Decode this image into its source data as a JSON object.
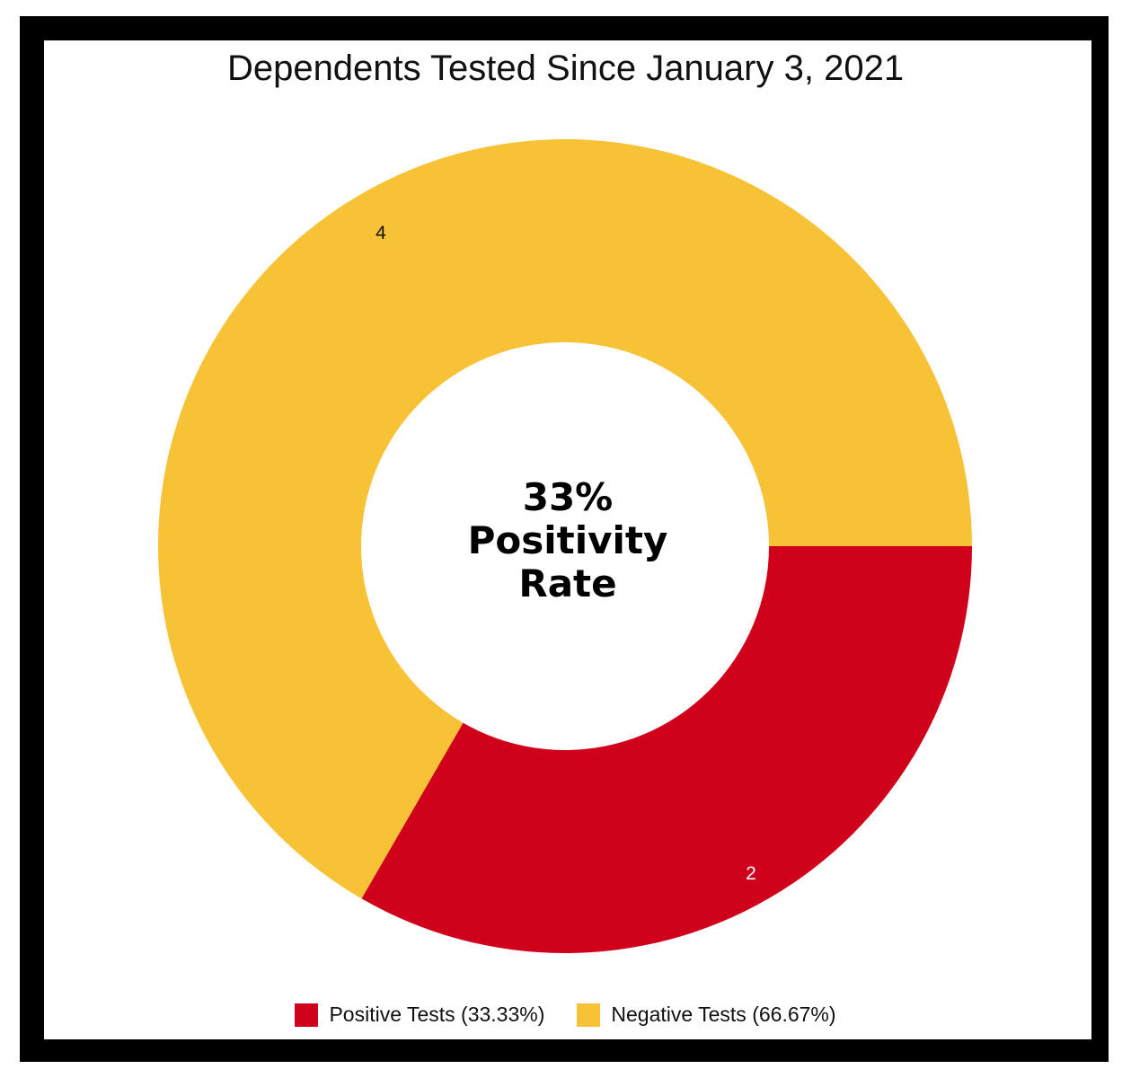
{
  "chart_data": {
    "type": "pie",
    "title": "Dependents Tested Since January 3, 2021",
    "center_label": [
      "33%",
      "Positivity",
      "Rate"
    ],
    "slices": [
      {
        "name": "Positive Tests (33.33%)",
        "value": 2,
        "label": "2",
        "color": "#d0021b",
        "label_color": "#ffffff"
      },
      {
        "name": "Negative Tests (66.67%)",
        "value": 4,
        "label": "4",
        "color": "#f8c236",
        "label_color": "#111111"
      }
    ],
    "legend_position": "bottom-center"
  }
}
